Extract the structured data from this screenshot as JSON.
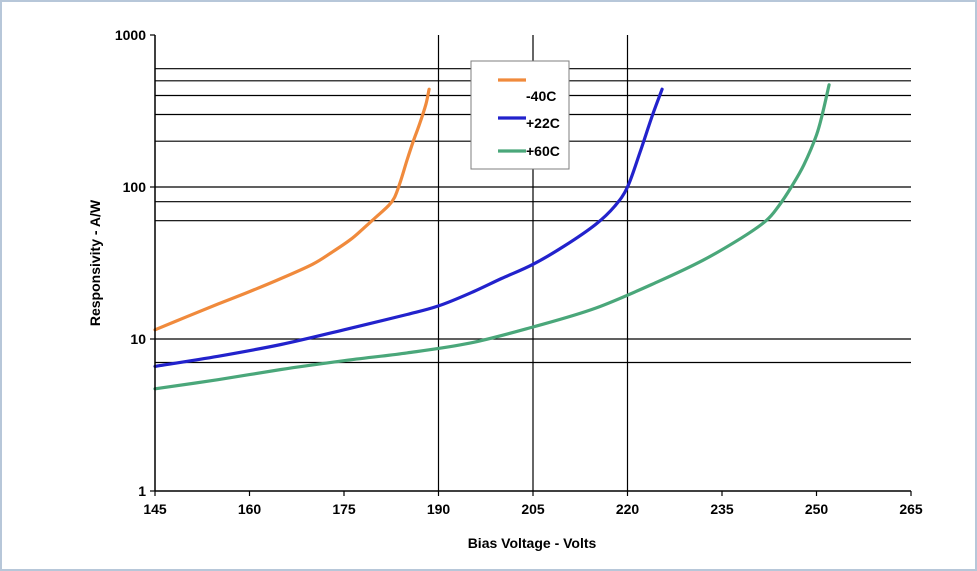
{
  "chart_data": {
    "type": "line",
    "title": "",
    "xlabel": "Bias Voltage - Volts",
    "ylabel": "Responsivity - A/W",
    "xlim": [
      145,
      265
    ],
    "ylim": [
      1,
      1000
    ],
    "yscale": "log",
    "xticks": [
      "145",
      "160",
      "175",
      "190",
      "205",
      "220",
      "235",
      "250",
      "265"
    ],
    "yticks": [
      "1",
      "10",
      "100",
      "1000"
    ],
    "grid": "partial",
    "legend_position": "top-center",
    "series": [
      {
        "name": "-40C",
        "color": "#f08a3c",
        "x": [
          145,
          150,
          155,
          160,
          165,
          170,
          173,
          176,
          178,
          180,
          182,
          183,
          184,
          185,
          186,
          187,
          188,
          188.5
        ],
        "y": [
          11.5,
          14,
          17,
          20.5,
          25,
          31,
          37,
          45,
          53,
          63,
          75,
          85,
          110,
          150,
          200,
          260,
          350,
          440
        ]
      },
      {
        "name": "+22C",
        "color": "#2222cc",
        "x": [
          145,
          155,
          165,
          175,
          185,
          190,
          195,
          200,
          205,
          210,
          215,
          218,
          220,
          222,
          224,
          225.5
        ],
        "y": [
          6.6,
          7.7,
          9.2,
          11.5,
          14.5,
          16.5,
          20,
          25,
          31,
          41,
          57,
          75,
          100,
          170,
          300,
          440
        ]
      },
      {
        "name": "+60C",
        "color": "#4aa77a",
        "x": [
          145,
          155,
          165,
          175,
          185,
          195,
          205,
          215,
          225,
          232,
          238,
          242,
          244,
          246,
          248,
          250,
          251,
          252
        ],
        "y": [
          4.7,
          5.4,
          6.3,
          7.2,
          8.1,
          9.4,
          12,
          16,
          24,
          33,
          46,
          60,
          75,
          100,
          140,
          220,
          310,
          470
        ]
      }
    ]
  }
}
